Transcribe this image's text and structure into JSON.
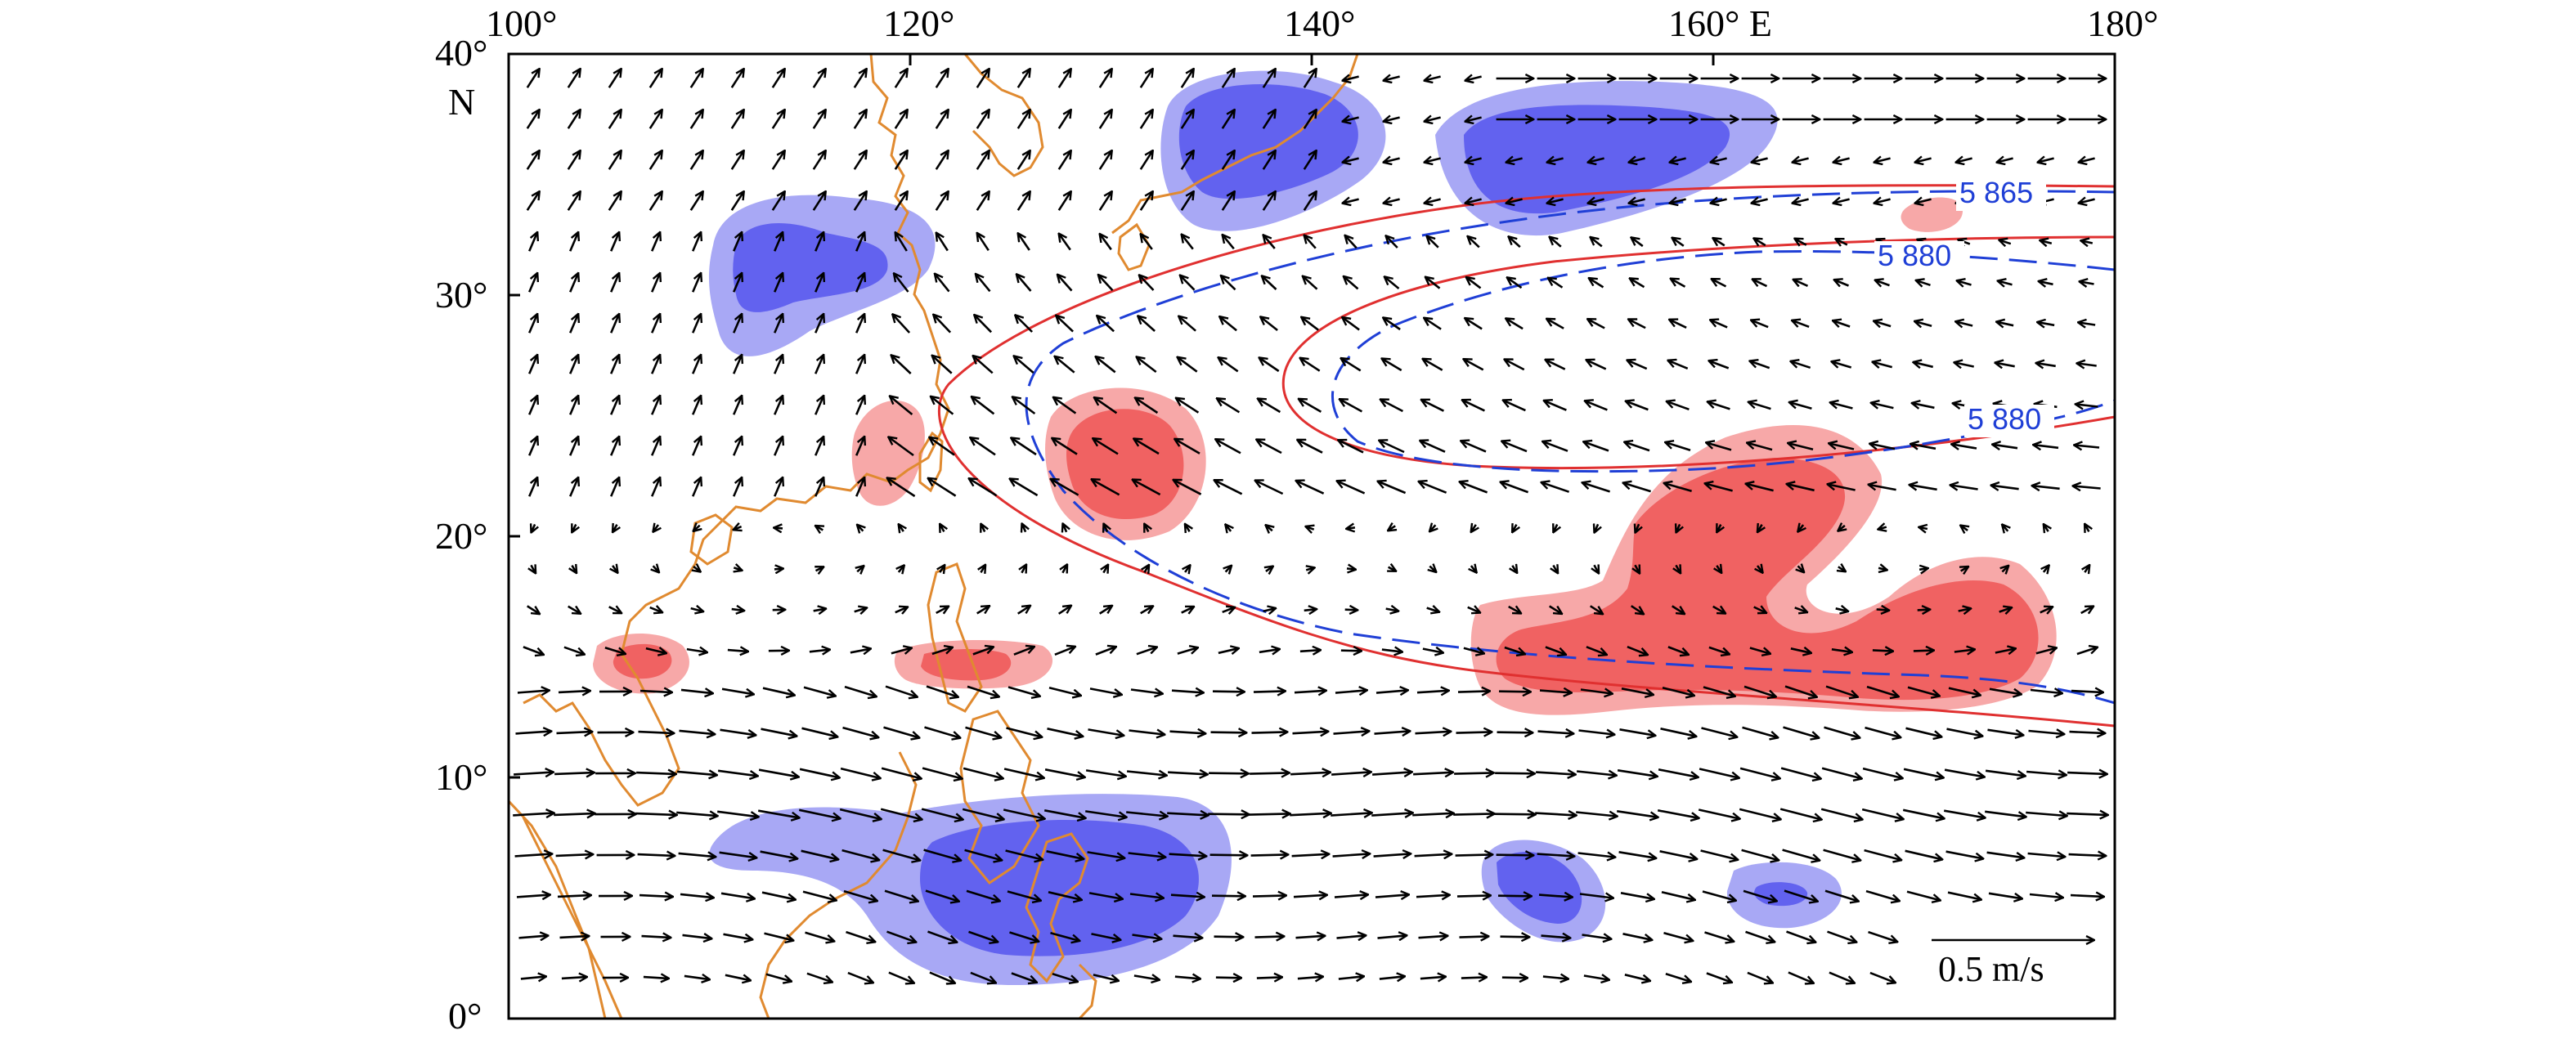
{
  "map": {
    "longitude_labels": [
      "100°",
      "120°",
      "140°",
      "160° E",
      "180°"
    ],
    "latitude_labels": [
      "40°",
      "30°",
      "20°",
      "10°",
      "0°"
    ],
    "north_label": "N",
    "extent": {
      "lon_min": 100,
      "lon_max": 180,
      "lat_min": 0,
      "lat_max": 40
    },
    "contours": [
      {
        "label": "5 865",
        "color": "#1f3fd6",
        "style": "dashed"
      },
      {
        "label": "5 880",
        "color": "#1f3fd6",
        "style": "dashed"
      },
      {
        "label": "5 880",
        "color": "#1f3fd6",
        "style": "dashed"
      }
    ],
    "reference_contour_color": "#e03030",
    "positive_anomaly_colors": [
      "#f7a8a8",
      "#f06262"
    ],
    "negative_anomaly_colors": [
      "#a8a8f5",
      "#6262ef"
    ],
    "coastline_color": "#e08a30",
    "wind_vectors": {
      "color": "#000000"
    },
    "scale_vector": {
      "label": "0.5 m/s"
    }
  }
}
